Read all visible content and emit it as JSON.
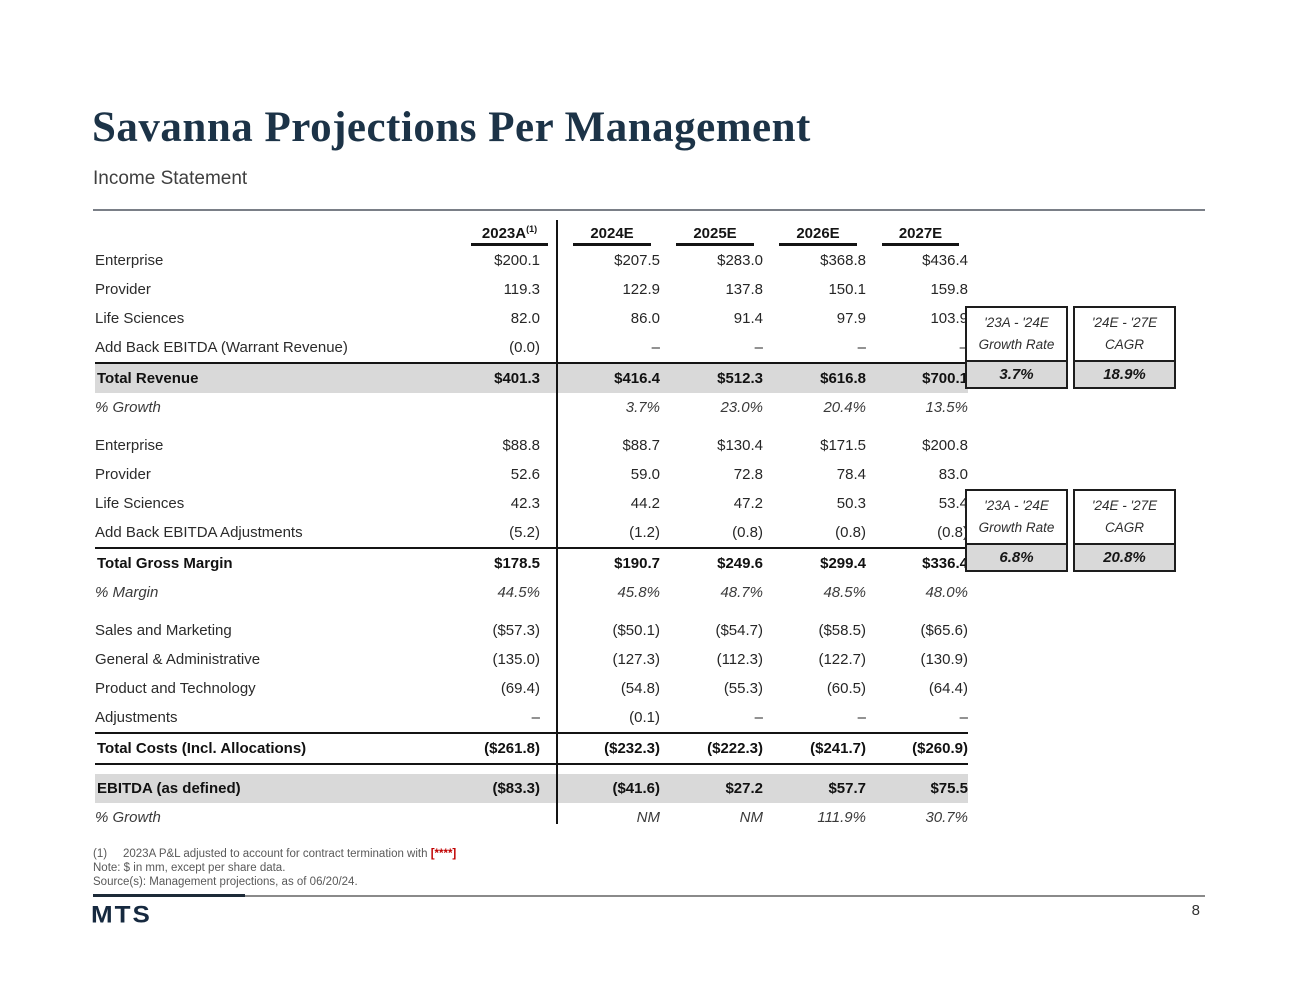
{
  "slide": {
    "title": "Savanna Projections Per Management",
    "subtitle": "Income Statement",
    "logo_text": "MTS",
    "page_number": "8"
  },
  "colors": {
    "accent_navy": "#1c3347",
    "row_highlight_gray": "#d9d9d9",
    "redacted_red": "#c00000",
    "table_border_black": "#141414"
  },
  "table": {
    "header_footnote_marker": "(1)",
    "columns": [
      "2023A",
      "2024E",
      "2025E",
      "2026E",
      "2027E"
    ],
    "rows": [
      {
        "label": "Enterprise",
        "style": "normal",
        "values": [
          "$200.1",
          "$207.5",
          "$283.0",
          "$368.8",
          "$436.4"
        ]
      },
      {
        "label": "Provider",
        "style": "normal",
        "values": [
          "119.3",
          "122.9",
          "137.8",
          "150.1",
          "159.8"
        ]
      },
      {
        "label": "Life Sciences",
        "style": "normal",
        "values": [
          "82.0",
          "86.0",
          "91.4",
          "97.9",
          "103.9"
        ]
      },
      {
        "label": "Add Back EBITDA (Warrant Revenue)",
        "style": "normal",
        "values": [
          "(0.0)",
          "–",
          "–",
          "–",
          "–"
        ]
      },
      {
        "label": "Total Revenue",
        "style": "total-gray-top",
        "values": [
          "$401.3",
          "$416.4",
          "$512.3",
          "$616.8",
          "$700.1"
        ]
      },
      {
        "label": "% Growth",
        "style": "pct",
        "values": [
          "",
          "3.7%",
          "23.0%",
          "20.4%",
          "13.5%"
        ]
      },
      {
        "spacer": true
      },
      {
        "label": "Enterprise",
        "style": "normal",
        "values": [
          "$88.8",
          "$88.7",
          "$130.4",
          "$171.5",
          "$200.8"
        ]
      },
      {
        "label": "Provider",
        "style": "normal",
        "values": [
          "52.6",
          "59.0",
          "72.8",
          "78.4",
          "83.0"
        ]
      },
      {
        "label": "Life Sciences",
        "style": "normal",
        "values": [
          "42.3",
          "44.2",
          "47.2",
          "50.3",
          "53.4"
        ]
      },
      {
        "label": "Add Back EBITDA Adjustments",
        "style": "normal",
        "values": [
          "(5.2)",
          "(1.2)",
          "(0.8)",
          "(0.8)",
          "(0.8)"
        ]
      },
      {
        "label": "Total Gross Margin",
        "style": "total-top",
        "values": [
          "$178.5",
          "$190.7",
          "$249.6",
          "$299.4",
          "$336.4"
        ]
      },
      {
        "label": "% Margin",
        "style": "pct",
        "values": [
          "44.5%",
          "45.8%",
          "48.7%",
          "48.5%",
          "48.0%"
        ]
      },
      {
        "spacer": true
      },
      {
        "label": "Sales and Marketing",
        "style": "normal",
        "values": [
          "($57.3)",
          "($50.1)",
          "($54.7)",
          "($58.5)",
          "($65.6)"
        ]
      },
      {
        "label": "General & Administrative",
        "style": "normal",
        "values": [
          "(135.0)",
          "(127.3)",
          "(112.3)",
          "(122.7)",
          "(130.9)"
        ]
      },
      {
        "label": "Product and Technology",
        "style": "normal",
        "values": [
          "(69.4)",
          "(54.8)",
          "(55.3)",
          "(60.5)",
          "(64.4)"
        ]
      },
      {
        "label": "Adjustments",
        "style": "normal",
        "values": [
          "–",
          "(0.1)",
          "–",
          "–",
          "–"
        ]
      },
      {
        "label": "Total Costs (Incl. Allocations)",
        "style": "total-topbottom",
        "values": [
          "($261.8)",
          "($232.3)",
          "($222.3)",
          "($241.7)",
          "($260.9)"
        ]
      },
      {
        "spacer": true
      },
      {
        "label": "EBITDA (as defined)",
        "style": "total-gray",
        "values": [
          "($83.3)",
          "($41.6)",
          "$27.2",
          "$57.7",
          "$75.5"
        ]
      },
      {
        "label": "% Growth",
        "style": "pct",
        "values": [
          "",
          "NM",
          "NM",
          "111.9%",
          "30.7%"
        ]
      }
    ]
  },
  "growth_boxes": {
    "revenue": [
      {
        "line1": "'23A - '24E",
        "line2": "Growth Rate",
        "value": "3.7%"
      },
      {
        "line1": "'24E - '27E",
        "line2": "CAGR",
        "value": "18.9%"
      }
    ],
    "gross_margin": [
      {
        "line1": "'23A - '24E",
        "line2": "Growth Rate",
        "value": "6.8%"
      },
      {
        "line1": "'24E - '27E",
        "line2": "CAGR",
        "value": "20.8%"
      }
    ]
  },
  "footnotes": {
    "note1_marker": "(1)",
    "note1_text": "2023A P&L adjusted to account for contract termination with ",
    "note1_redacted": "[****]",
    "note2": "Note: $ in mm, except per share data.",
    "note3": "Source(s): Management projections, as of 06/20/24."
  }
}
